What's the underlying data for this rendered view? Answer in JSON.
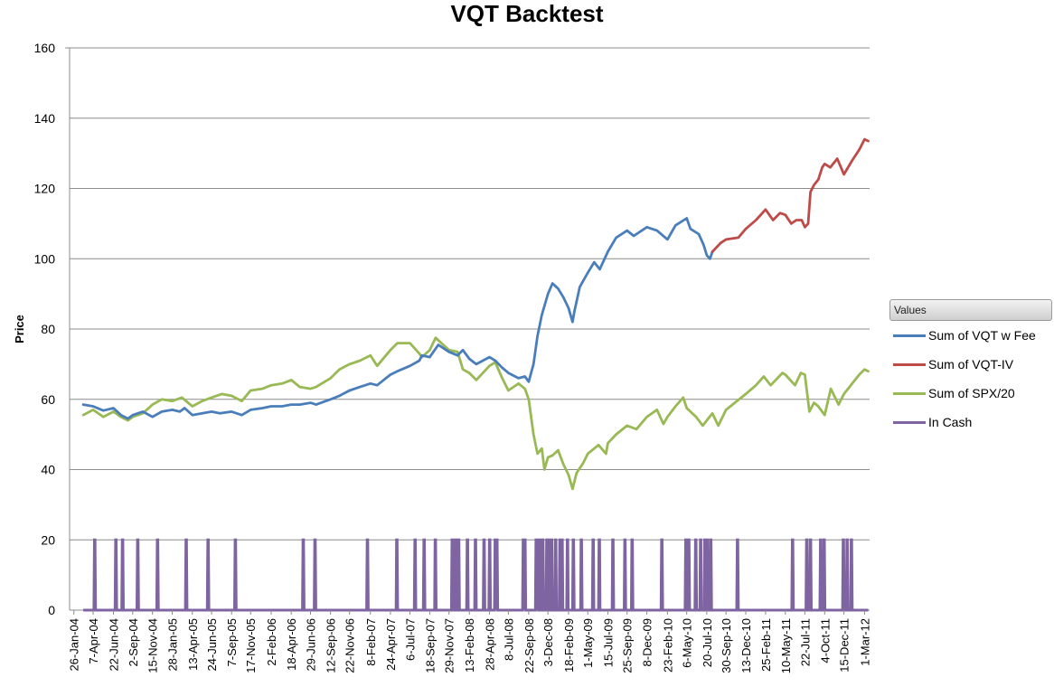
{
  "chart_data": {
    "type": "line",
    "title": "VQT Backtest",
    "ylabel": "Price",
    "xlabel": "",
    "ylim": [
      0,
      160
    ],
    "yticks": [
      0,
      20,
      40,
      60,
      80,
      100,
      120,
      140,
      160
    ],
    "grid": true,
    "legend_position": "right",
    "legend_header": "Values",
    "x_tick_labels": [
      "26-Jan-04",
      "7-Apr-04",
      "22-Jun-04",
      "2-Sep-04",
      "15-Nov-04",
      "28-Jan-05",
      "13-Apr-05",
      "24-Jun-05",
      "7-Sep-05",
      "17-Nov-05",
      "2-Feb-06",
      "18-Apr-06",
      "29-Jun-06",
      "12-Sep-06",
      "22-Nov-06",
      "8-Feb-07",
      "24-Apr-07",
      "6-Jul-07",
      "18-Sep-07",
      "29-Nov-07",
      "13-Feb-08",
      "28-Apr-08",
      "8-Jul-08",
      "22-Sep-08",
      "3-Dec-08",
      "18-Feb-09",
      "1-May-09",
      "15-Jul-09",
      "25-Sep-09",
      "8-Dec-09",
      "23-Feb-10",
      "6-May-10",
      "20-Jul-10",
      "30-Sep-10",
      "13-Dec-10",
      "25-Feb-11",
      "10-May-11",
      "22-Jul-11",
      "4-Oct-11",
      "15-Dec-11",
      "1-Mar-12"
    ],
    "series": [
      {
        "name": "Sum of VQT w Fee",
        "color": "#4a7ebb",
        "points": [
          [
            "2004-03-01",
            58.5
          ],
          [
            "2004-04-07",
            58.0
          ],
          [
            "2004-05-15",
            56.8
          ],
          [
            "2004-06-22",
            57.5
          ],
          [
            "2004-07-20",
            55.5
          ],
          [
            "2004-08-15",
            54.5
          ],
          [
            "2004-09-02",
            55.5
          ],
          [
            "2004-10-10",
            56.5
          ],
          [
            "2004-11-15",
            55.0
          ],
          [
            "2004-12-20",
            56.5
          ],
          [
            "2005-01-28",
            57.0
          ],
          [
            "2005-02-25",
            56.5
          ],
          [
            "2005-03-15",
            57.5
          ],
          [
            "2005-04-13",
            55.5
          ],
          [
            "2005-05-20",
            56.0
          ],
          [
            "2005-06-24",
            56.5
          ],
          [
            "2005-07-25",
            56.0
          ],
          [
            "2005-09-07",
            56.5
          ],
          [
            "2005-10-15",
            55.5
          ],
          [
            "2005-11-17",
            57.0
          ],
          [
            "2005-12-31",
            57.5
          ],
          [
            "2006-02-02",
            58.0
          ],
          [
            "2006-03-15",
            58.0
          ],
          [
            "2006-04-18",
            58.5
          ],
          [
            "2006-05-20",
            58.5
          ],
          [
            "2006-06-29",
            59.0
          ],
          [
            "2006-07-20",
            58.5
          ],
          [
            "2006-09-12",
            60.0
          ],
          [
            "2006-10-15",
            61.0
          ],
          [
            "2006-11-22",
            62.5
          ],
          [
            "2006-12-31",
            63.5
          ],
          [
            "2007-02-08",
            64.5
          ],
          [
            "2007-03-05",
            64.0
          ],
          [
            "2007-04-24",
            67.0
          ],
          [
            "2007-05-20",
            68.0
          ],
          [
            "2007-07-06",
            69.5
          ],
          [
            "2007-08-10",
            71.0
          ],
          [
            "2007-08-20",
            72.5
          ],
          [
            "2007-09-18",
            72.0
          ],
          [
            "2007-10-20",
            75.5
          ],
          [
            "2007-11-29",
            73.5
          ],
          [
            "2007-12-31",
            72.5
          ],
          [
            "2008-01-20",
            74.0
          ],
          [
            "2008-02-13",
            71.5
          ],
          [
            "2008-03-10",
            70.0
          ],
          [
            "2008-04-28",
            72.0
          ],
          [
            "2008-05-20",
            71.0
          ],
          [
            "2008-06-15",
            69.0
          ],
          [
            "2008-07-08",
            67.5
          ],
          [
            "2008-08-15",
            66.0
          ],
          [
            "2008-09-08",
            66.5
          ],
          [
            "2008-09-22",
            65.0
          ],
          [
            "2008-10-10",
            70.0
          ],
          [
            "2008-10-25",
            78.0
          ],
          [
            "2008-11-10",
            84.0
          ],
          [
            "2008-12-03",
            90.0
          ],
          [
            "2008-12-20",
            93.0
          ],
          [
            "2009-01-10",
            91.5
          ],
          [
            "2009-01-30",
            89.0
          ],
          [
            "2009-02-18",
            86.0
          ],
          [
            "2009-03-05",
            82.0
          ],
          [
            "2009-03-12",
            85.0
          ],
          [
            "2009-04-01",
            92.0
          ],
          [
            "2009-05-01",
            96.0
          ],
          [
            "2009-05-25",
            99.0
          ],
          [
            "2009-06-15",
            97.0
          ],
          [
            "2009-07-15",
            102.0
          ],
          [
            "2009-08-15",
            106.0
          ],
          [
            "2009-09-25",
            108.0
          ],
          [
            "2009-10-20",
            106.5
          ],
          [
            "2009-12-08",
            109.0
          ],
          [
            "2010-01-15",
            108.0
          ],
          [
            "2010-02-23",
            105.5
          ],
          [
            "2010-03-25",
            109.5
          ],
          [
            "2010-05-06",
            111.5
          ],
          [
            "2010-05-20",
            108.5
          ],
          [
            "2010-06-20",
            107.0
          ],
          [
            "2010-07-08",
            104.0
          ],
          [
            "2010-07-20",
            101.0
          ],
          [
            "2010-08-01",
            100.0
          ],
          [
            "2010-08-10",
            102.0
          ]
        ]
      },
      {
        "name": "Sum of VQT-IV",
        "color": "#be4b48",
        "points": [
          [
            "2010-08-10",
            102.0
          ],
          [
            "2010-09-10",
            104.5
          ],
          [
            "2010-09-30",
            105.5
          ],
          [
            "2010-11-15",
            106.0
          ],
          [
            "2010-12-13",
            108.5
          ],
          [
            "2011-01-20",
            111.0
          ],
          [
            "2011-02-25",
            114.0
          ],
          [
            "2011-03-25",
            111.0
          ],
          [
            "2011-04-20",
            113.0
          ],
          [
            "2011-05-10",
            112.5
          ],
          [
            "2011-06-01",
            110.0
          ],
          [
            "2011-06-20",
            111.0
          ],
          [
            "2011-07-10",
            111.0
          ],
          [
            "2011-07-22",
            109.0
          ],
          [
            "2011-08-03",
            110.0
          ],
          [
            "2011-08-12",
            119.0
          ],
          [
            "2011-08-25",
            121.0
          ],
          [
            "2011-09-10",
            122.5
          ],
          [
            "2011-09-25",
            126.0
          ],
          [
            "2011-10-04",
            127.0
          ],
          [
            "2011-10-25",
            126.0
          ],
          [
            "2011-11-20",
            128.5
          ],
          [
            "2011-12-15",
            124.0
          ],
          [
            "2012-01-15",
            128.0
          ],
          [
            "2012-02-10",
            131.0
          ],
          [
            "2012-03-01",
            134.0
          ],
          [
            "2012-03-15",
            133.5
          ]
        ]
      },
      {
        "name": "Sum of SPX/20",
        "color": "#98b954",
        "points": [
          [
            "2004-03-01",
            55.5
          ],
          [
            "2004-04-07",
            57.0
          ],
          [
            "2004-05-15",
            55.0
          ],
          [
            "2004-06-22",
            56.5
          ],
          [
            "2004-07-20",
            55.0
          ],
          [
            "2004-08-15",
            54.0
          ],
          [
            "2004-09-02",
            55.0
          ],
          [
            "2004-10-10",
            56.0
          ],
          [
            "2004-11-15",
            58.5
          ],
          [
            "2004-12-20",
            60.0
          ],
          [
            "2005-01-28",
            59.5
          ],
          [
            "2005-03-05",
            60.5
          ],
          [
            "2005-04-13",
            58.0
          ],
          [
            "2005-05-20",
            59.5
          ],
          [
            "2005-06-24",
            60.5
          ],
          [
            "2005-08-01",
            61.5
          ],
          [
            "2005-09-07",
            61.0
          ],
          [
            "2005-10-15",
            59.5
          ],
          [
            "2005-11-17",
            62.5
          ],
          [
            "2005-12-31",
            63.0
          ],
          [
            "2006-02-02",
            64.0
          ],
          [
            "2006-03-15",
            64.5
          ],
          [
            "2006-04-18",
            65.5
          ],
          [
            "2006-05-20",
            63.5
          ],
          [
            "2006-06-29",
            63.0
          ],
          [
            "2006-07-20",
            63.5
          ],
          [
            "2006-09-12",
            66.0
          ],
          [
            "2006-10-15",
            68.5
          ],
          [
            "2006-11-22",
            70.0
          ],
          [
            "2006-12-31",
            71.0
          ],
          [
            "2007-02-08",
            72.5
          ],
          [
            "2007-03-05",
            69.5
          ],
          [
            "2007-04-24",
            74.0
          ],
          [
            "2007-05-20",
            76.0
          ],
          [
            "2007-07-06",
            76.0
          ],
          [
            "2007-08-10",
            73.0
          ],
          [
            "2007-08-20",
            72.0
          ],
          [
            "2007-09-18",
            74.0
          ],
          [
            "2007-10-10",
            77.5
          ],
          [
            "2007-11-29",
            74.0
          ],
          [
            "2007-12-31",
            73.5
          ],
          [
            "2008-01-20",
            68.5
          ],
          [
            "2008-02-13",
            67.5
          ],
          [
            "2008-03-10",
            65.5
          ],
          [
            "2008-04-28",
            69.5
          ],
          [
            "2008-05-20",
            70.5
          ],
          [
            "2008-06-15",
            66.0
          ],
          [
            "2008-07-08",
            62.5
          ],
          [
            "2008-08-15",
            64.5
          ],
          [
            "2008-09-08",
            63.0
          ],
          [
            "2008-09-22",
            60.0
          ],
          [
            "2008-10-10",
            50.0
          ],
          [
            "2008-10-25",
            44.5
          ],
          [
            "2008-11-10",
            46.0
          ],
          [
            "2008-11-20",
            40.0
          ],
          [
            "2008-12-03",
            43.5
          ],
          [
            "2008-12-20",
            44.0
          ],
          [
            "2009-01-10",
            45.5
          ],
          [
            "2009-01-30",
            41.5
          ],
          [
            "2009-02-18",
            38.5
          ],
          [
            "2009-03-05",
            34.5
          ],
          [
            "2009-03-20",
            39.0
          ],
          [
            "2009-04-15",
            42.0
          ],
          [
            "2009-05-01",
            44.5
          ],
          [
            "2009-06-10",
            47.0
          ],
          [
            "2009-07-08",
            44.5
          ],
          [
            "2009-07-15",
            47.5
          ],
          [
            "2009-08-15",
            50.0
          ],
          [
            "2009-09-25",
            52.5
          ],
          [
            "2009-10-30",
            51.5
          ],
          [
            "2009-12-08",
            55.0
          ],
          [
            "2010-01-15",
            57.0
          ],
          [
            "2010-02-08",
            53.0
          ],
          [
            "2010-02-23",
            55.0
          ],
          [
            "2010-03-25",
            58.0
          ],
          [
            "2010-04-23",
            60.5
          ],
          [
            "2010-05-06",
            57.5
          ],
          [
            "2010-06-10",
            55.0
          ],
          [
            "2010-07-05",
            52.5
          ],
          [
            "2010-07-20",
            54.0
          ],
          [
            "2010-08-10",
            56.0
          ],
          [
            "2010-09-01",
            52.5
          ],
          [
            "2010-09-30",
            57.0
          ],
          [
            "2010-11-10",
            59.5
          ],
          [
            "2010-12-13",
            61.5
          ],
          [
            "2011-01-20",
            64.0
          ],
          [
            "2011-02-18",
            66.5
          ],
          [
            "2011-03-16",
            64.0
          ],
          [
            "2011-04-29",
            67.5
          ],
          [
            "2011-05-10",
            67.0
          ],
          [
            "2011-06-15",
            64.0
          ],
          [
            "2011-07-07",
            67.5
          ],
          [
            "2011-07-22",
            67.0
          ],
          [
            "2011-08-08",
            56.5
          ],
          [
            "2011-08-25",
            59.0
          ],
          [
            "2011-09-10",
            58.0
          ],
          [
            "2011-10-04",
            55.5
          ],
          [
            "2011-10-27",
            63.0
          ],
          [
            "2011-11-25",
            58.5
          ],
          [
            "2011-12-15",
            61.5
          ],
          [
            "2012-01-15",
            64.5
          ],
          [
            "2012-02-10",
            67.0
          ],
          [
            "2012-03-01",
            68.5
          ],
          [
            "2012-03-15",
            68.0
          ]
        ]
      },
      {
        "name": "In Cash",
        "color": "#7e64a0",
        "value_when_in_cash": 20,
        "value_otherwise": 0,
        "cash_dates": [
          "2004-04-12",
          "2004-06-30",
          "2004-07-25",
          "2004-09-20",
          "2004-12-03",
          "2005-03-20",
          "2005-06-10",
          "2005-09-20",
          "2006-06-01",
          "2006-07-15",
          "2007-01-27",
          "2007-05-17",
          "2007-07-24",
          "2007-08-27",
          "2007-10-08",
          "2007-12-10",
          "2007-12-22",
          "2008-01-03",
          "2008-02-05",
          "2008-03-06",
          "2008-04-07",
          "2008-04-28",
          "2008-05-19",
          "2008-05-25",
          "2008-09-01",
          "2008-09-07",
          "2008-10-19",
          "2008-10-25",
          "2008-11-04",
          "2008-11-13",
          "2008-11-28",
          "2008-12-06",
          "2008-12-16",
          "2008-12-31",
          "2009-01-16",
          "2009-01-24",
          "2009-02-13",
          "2009-03-07",
          "2009-04-06",
          "2009-05-20",
          "2009-06-12",
          "2009-08-02",
          "2009-09-16",
          "2009-10-13",
          "2010-02-01",
          "2010-05-02",
          "2010-05-13",
          "2010-06-08",
          "2010-06-26",
          "2010-07-12",
          "2010-07-21",
          "2010-08-03",
          "2010-11-11",
          "2011-06-05",
          "2011-07-28",
          "2011-08-11",
          "2011-09-18",
          "2011-10-01",
          "2011-12-12",
          "2011-12-26",
          "2012-01-11"
        ]
      }
    ]
  }
}
